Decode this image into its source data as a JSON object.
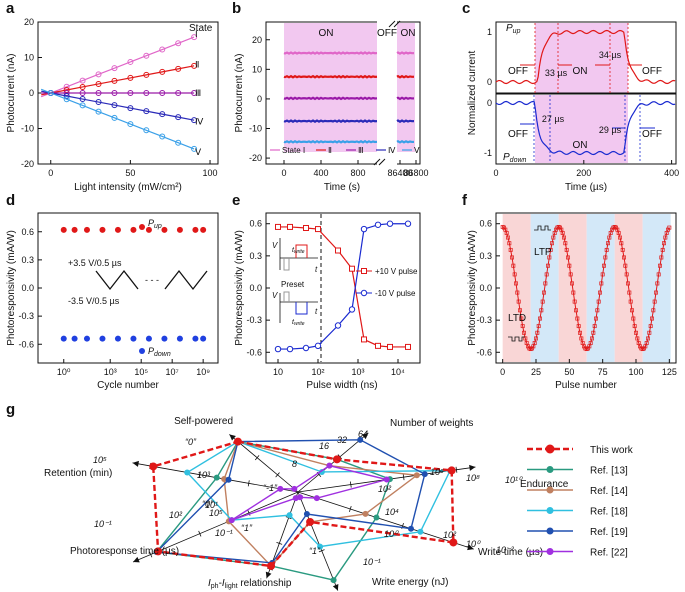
{
  "panels": {
    "a": "a",
    "b": "b",
    "c": "c",
    "d": "d",
    "e": "e",
    "f": "f",
    "g": "g"
  },
  "chart_data": [
    {
      "id": "a",
      "type": "line",
      "xlabel": "Light intensity (mW/cm²)",
      "ylabel": "Photocurrent (nA)",
      "xlim": [
        -8,
        105
      ],
      "ylim": [
        -20,
        20
      ],
      "xticks": [
        0,
        50,
        100
      ],
      "yticks": [
        -20,
        -10,
        0,
        10,
        20
      ],
      "legend_title": "State",
      "x": [
        0,
        10,
        20,
        30,
        40,
        50,
        60,
        70,
        80,
        90
      ],
      "series": [
        {
          "name": "Ⅰ",
          "slope": 0.175,
          "color": "#e066c8"
        },
        {
          "name": "Ⅱ",
          "slope": 0.085,
          "color": "#e01818"
        },
        {
          "name": "Ⅲ",
          "slope": 0.0,
          "color": "#9a1aa8"
        },
        {
          "name": "Ⅳ",
          "slope": -0.085,
          "color": "#2a2ab8"
        },
        {
          "name": "Ⅴ",
          "slope": -0.175,
          "color": "#3aa0e8"
        }
      ]
    },
    {
      "id": "b",
      "type": "line",
      "xlabel": "Time (s)",
      "ylabel": "Photocurrent (nA)",
      "ylim": [
        -22,
        26
      ],
      "yticks": [
        -20,
        -10,
        0,
        10,
        20
      ],
      "xticks": [
        "0",
        "400",
        "800",
        "86400",
        "86800"
      ],
      "annotations": {
        "on1": "ON",
        "off": "OFF",
        "on2": "ON"
      },
      "series": [
        {
          "name": "State Ⅰ",
          "level": 15.5,
          "color": "#e066c8"
        },
        {
          "name": "Ⅱ",
          "level": 7.5,
          "color": "#e01818"
        },
        {
          "name": "Ⅲ",
          "level": 0.2,
          "color": "#9a1aa8"
        },
        {
          "name": "Ⅳ",
          "level": -7.5,
          "color": "#2a2ab8"
        },
        {
          "name": "Ⅴ",
          "level": -14.5,
          "color": "#3aa0e8"
        }
      ]
    },
    {
      "id": "c",
      "type": "line",
      "xlabel": "Time (µs)",
      "ylabel": "Normalized current",
      "xlim": [
        0,
        410
      ],
      "xticks": [
        0,
        200,
        400
      ],
      "top": {
        "label_main": "P",
        "label_sub": "up",
        "yticks": [
          0,
          1
        ],
        "off1": "OFF",
        "on": "ON",
        "off2": "OFF",
        "rise": "33 µs",
        "fall": "34 µs",
        "color": "#e01818"
      },
      "bottom": {
        "label_main": "P",
        "label_sub": "down",
        "yticks": [
          -1,
          0
        ],
        "off1": "OFF",
        "on": "ON",
        "off2": "OFF",
        "rise": "27 µs",
        "fall": "29 µs",
        "color": "#1a2ad0"
      }
    },
    {
      "id": "d",
      "type": "scatter",
      "xlabel": "Cycle number",
      "ylabel": "Photoresponsivity (mA/W)",
      "ylim": [
        -0.8,
        0.8
      ],
      "yticks": [
        -0.6,
        -0.3,
        0.0,
        0.3,
        0.6
      ],
      "xticks": [
        "10⁰",
        "10³",
        "10⁵",
        "10⁷",
        "10⁹"
      ],
      "up_label_main": "P",
      "up_label_sub": "up",
      "down_label_main": "P",
      "down_label_sub": "down",
      "pulse_pos": "+3.5 V/0.5 µs",
      "pulse_neg": "-3.5 V/0.5 µs",
      "log_cycles": [
        0,
        0.7,
        1.5,
        2.5,
        3.5,
        4.5,
        5.5,
        6.5,
        7.5,
        8.5,
        9
      ],
      "up": [
        0.62,
        0.62,
        0.62,
        0.62,
        0.62,
        0.62,
        0.62,
        0.62,
        0.62,
        0.62,
        0.62
      ],
      "down": [
        -0.54,
        -0.54,
        -0.54,
        -0.54,
        -0.54,
        -0.54,
        -0.54,
        -0.54,
        -0.54,
        -0.54,
        -0.54
      ]
    },
    {
      "id": "e",
      "type": "line",
      "xlabel": "Pulse width (ns)",
      "ylabel": "Photoresponsivity (mA/W)",
      "ylim": [
        -0.7,
        0.7
      ],
      "yticks": [
        -0.6,
        -0.3,
        0.0,
        0.3,
        0.6
      ],
      "xticks": [
        "10",
        "10²",
        "10³",
        "10⁴"
      ],
      "log_x": [
        1,
        1.3,
        1.7,
        2,
        2.5,
        2.85,
        3.15,
        3.5,
        3.8,
        4.25
      ],
      "series": [
        {
          "name": "+10 V pulse",
          "values": [
            0.57,
            0.57,
            0.56,
            0.55,
            0.35,
            0.18,
            -0.48,
            -0.54,
            -0.55,
            -0.55
          ],
          "color": "#e01818",
          "marker": "square"
        },
        {
          "name": "-10 V pulse",
          "values": [
            -0.57,
            -0.57,
            -0.56,
            -0.54,
            -0.35,
            -0.2,
            0.55,
            0.59,
            0.6,
            0.6
          ],
          "color": "#1a2ad0",
          "marker": "circle"
        }
      ],
      "inset": {
        "v": "V",
        "t": "t",
        "preset": "Preset",
        "t_write_main": "t",
        "t_write_sub": "write"
      }
    },
    {
      "id": "f",
      "type": "line",
      "xlabel": "Pulse number",
      "ylabel": "Photoresponsivity (mA/W)",
      "xlim": [
        -5,
        130
      ],
      "xticks": [
        0,
        25,
        50,
        75,
        100,
        125
      ],
      "ylim": [
        -0.7,
        0.7
      ],
      "yticks": [
        -0.6,
        -0.3,
        0.0,
        0.3,
        0.6
      ],
      "ltp": "LTP",
      "ltd": "LTD",
      "series": [
        {
          "name": "photoresponsivity",
          "color": "#e01818",
          "n_points": 126
        }
      ]
    },
    {
      "id": "g",
      "type": "radar",
      "axes": [
        "Self-powered",
        "Number of weights",
        "Endurance",
        "Write time (µs)",
        "Write energy (nJ)",
        "I",
        "Photoresponse time (µs)",
        "Retention (min)"
      ],
      "axis_label_ilight": {
        "i1": "I",
        "s1": "ph",
        "dash": "-",
        "i2": "I",
        "s2": "light",
        "rest": " relationship"
      },
      "tick_labels": [
        "10⁵",
        "10³",
        "10¹",
        "10⁻¹",
        "8",
        "16",
        "32",
        "64",
        "10⁶",
        "10⁸",
        "10¹⁰",
        "10²",
        "10⁰",
        "10⁻²",
        "10⁴",
        "10²",
        "10⁰",
        "10⁻¹",
        "10²",
        "10⁵",
        "10⁻¹",
        "“0”",
        "“1”",
        "“-1”",
        "“0”",
        "“1”"
      ],
      "legend": [
        {
          "name": "This work",
          "color": "#e01818"
        },
        {
          "name": "Ref. [13]",
          "color": "#2a9a80"
        },
        {
          "name": "Ref. [14]",
          "color": "#c08060"
        },
        {
          "name": "Ref. [18]",
          "color": "#30c0e0"
        },
        {
          "name": "Ref. [19]",
          "color": "#2050b0"
        },
        {
          "name": "Ref. [22]",
          "color": "#a030e0"
        }
      ],
      "series_radii": {
        "This work": [
          0.98,
          0.62,
          0.97,
          0.99,
          0.34,
          0.96,
          0.95,
          0.98
        ],
        "Ref. [13]": [
          0.98,
          0.62,
          0.58,
          0.5,
          1.0,
          0.96,
          0.96,
          0.55
        ],
        "Ref. [14]": [
          0.98,
          0.5,
          0.75,
          0.43,
          0.34,
          0.96,
          0.47,
          0.5
        ],
        "Ref. [18]": [
          0.98,
          0.38,
          0.96,
          0.78,
          0.62,
          0.3,
          0.45,
          0.75
        ],
        "Ref. [19]": [
          0.98,
          0.99,
          0.8,
          0.72,
          0.25,
          0.92,
          0.96,
          0.47
        ],
        "Ref. [22]": [
          0.06,
          0.5,
          0.56,
          0.12,
          0.06,
          0.08,
          0.45,
          0.12
        ]
      }
    }
  ]
}
